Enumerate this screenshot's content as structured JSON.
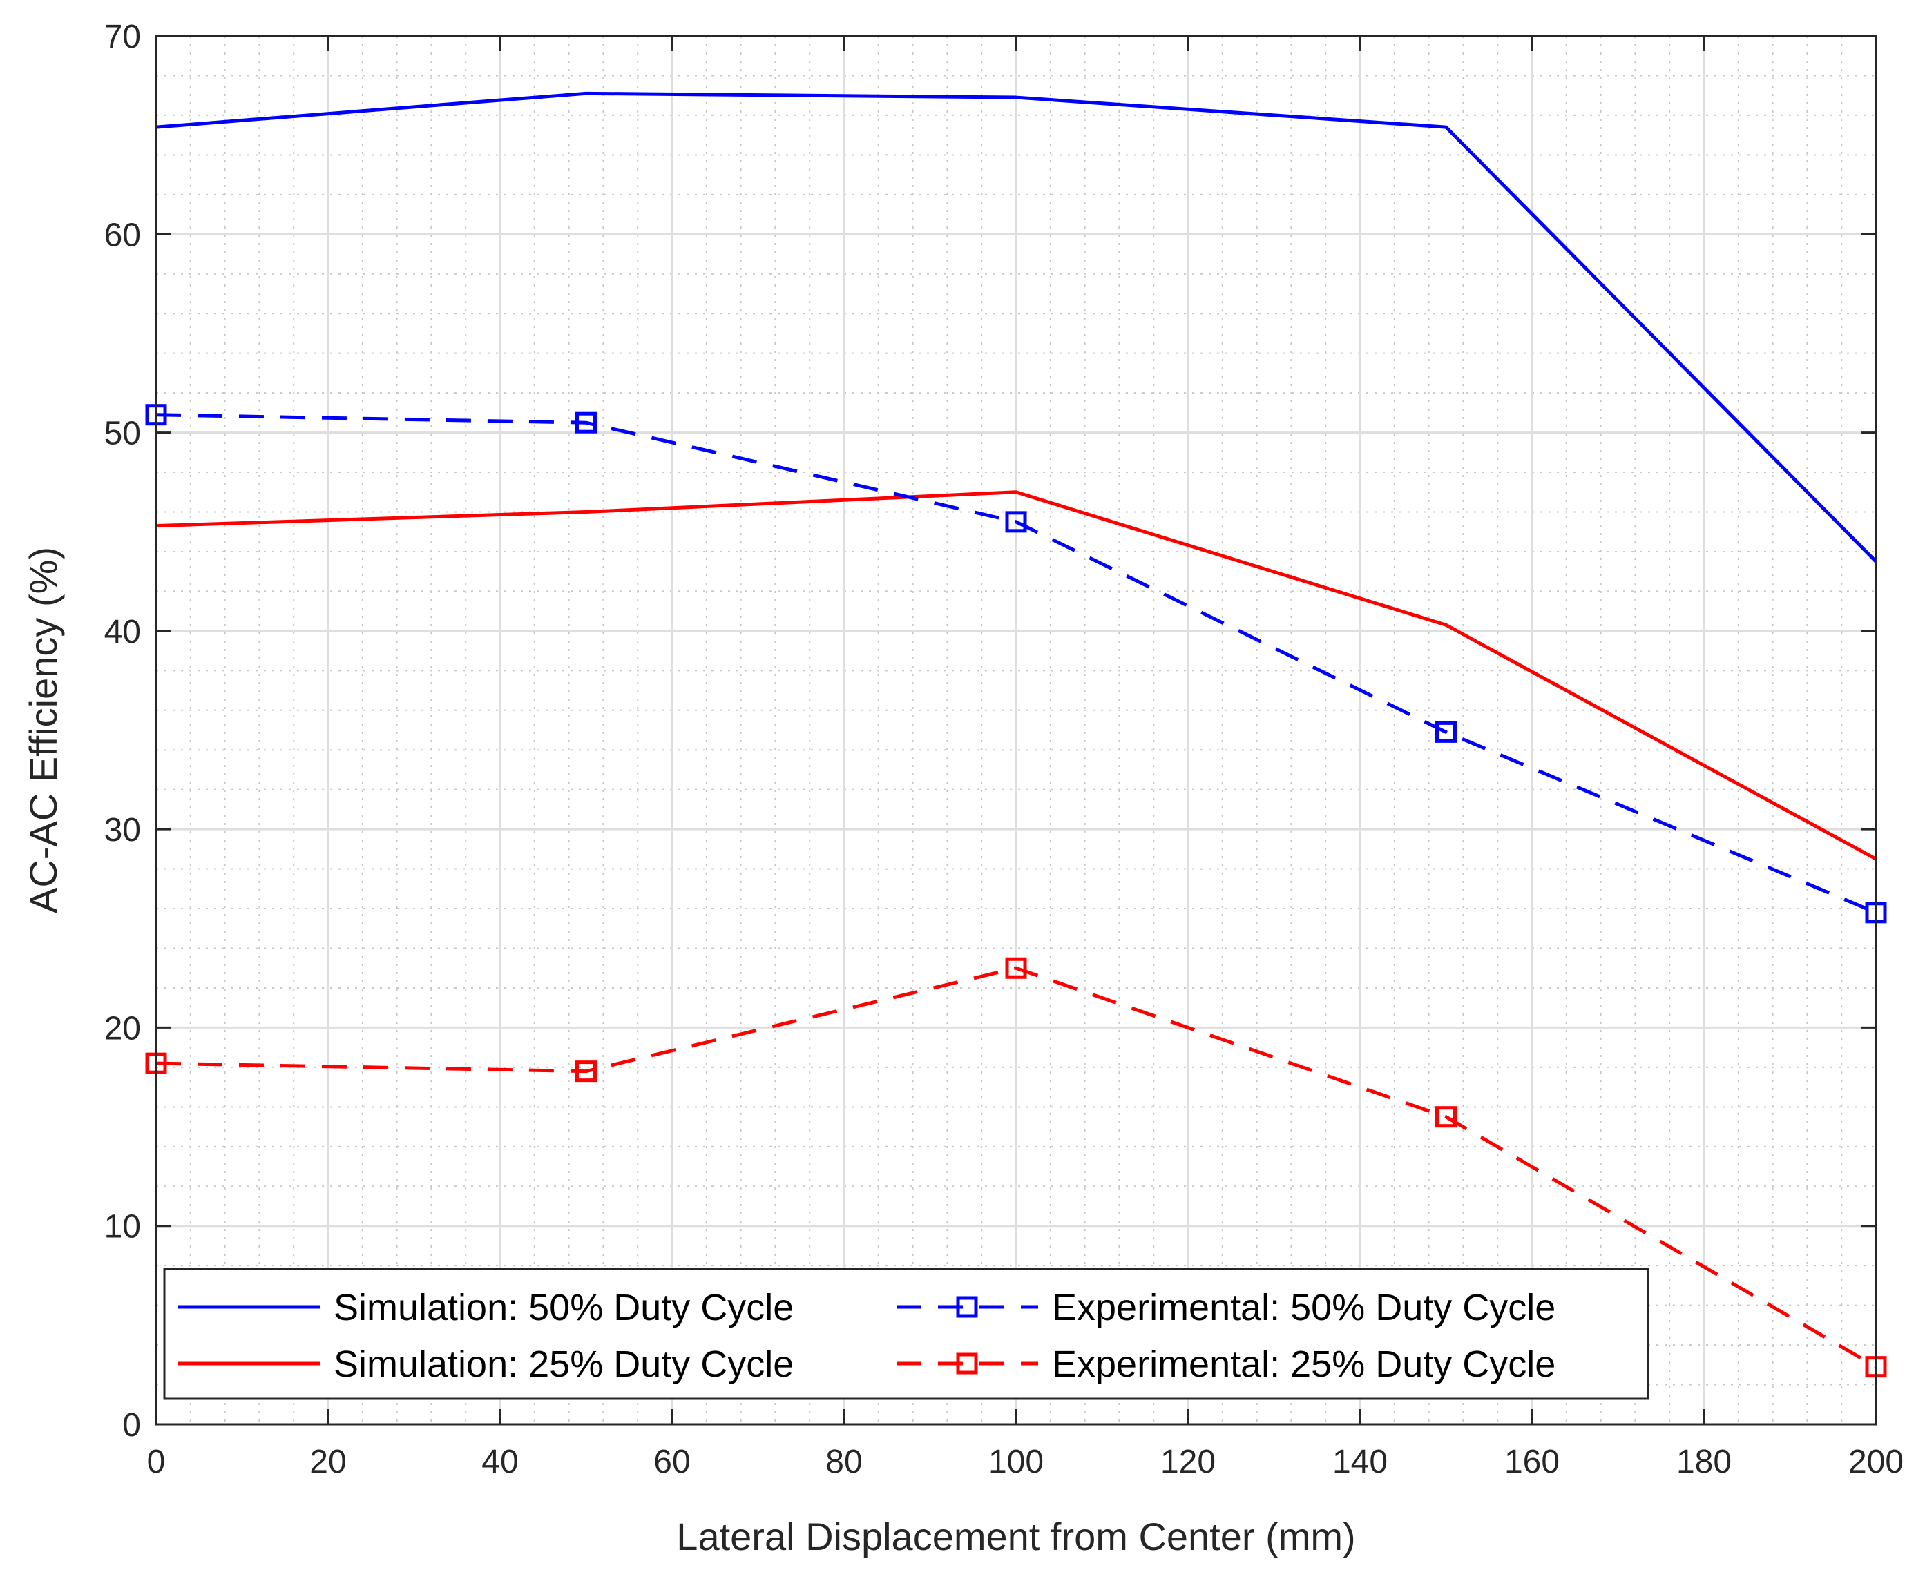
{
  "chart_data": {
    "type": "line",
    "title": "",
    "xlabel": "Lateral Displacement from Center (mm)",
    "ylabel": "AC-AC Efficiency (%)",
    "xlim": [
      0,
      200
    ],
    "ylim": [
      0,
      70
    ],
    "xticks": [
      0,
      20,
      40,
      60,
      80,
      100,
      120,
      140,
      160,
      180,
      200
    ],
    "yticks": [
      0,
      10,
      20,
      30,
      40,
      50,
      60,
      70
    ],
    "xtick_labels": [
      "0",
      "20",
      "40",
      "60",
      "80",
      "100",
      "120",
      "140",
      "160",
      "180",
      "200"
    ],
    "ytick_labels": [
      "0",
      "10",
      "20",
      "30",
      "40",
      "50",
      "60",
      "70"
    ],
    "grid": "major and minor",
    "legend_position": "bottom",
    "series": [
      {
        "name": "Simulation: 50% Duty Cycle",
        "color": "#0000ff",
        "style": "solid",
        "marker": "none",
        "x": [
          0,
          50,
          100,
          150,
          200
        ],
        "y": [
          65.4,
          67.1,
          66.9,
          65.4,
          43.5
        ]
      },
      {
        "name": "Simulation: 25% Duty Cycle",
        "color": "#ff0000",
        "style": "solid",
        "marker": "none",
        "x": [
          0,
          50,
          100,
          150,
          200
        ],
        "y": [
          45.3,
          46.0,
          47.0,
          40.3,
          28.5
        ]
      },
      {
        "name": "Experimental: 50% Duty Cycle",
        "color": "#0000ff",
        "style": "dashed",
        "marker": "square",
        "x": [
          0,
          50,
          100,
          150,
          200
        ],
        "y": [
          50.9,
          50.5,
          45.5,
          34.9,
          25.8
        ]
      },
      {
        "name": "Experimental: 25% Duty Cycle",
        "color": "#ff0000",
        "style": "dashed",
        "marker": "square",
        "x": [
          0,
          50,
          100,
          150,
          200
        ],
        "y": [
          18.2,
          17.8,
          23.0,
          15.5,
          2.9
        ]
      }
    ]
  }
}
